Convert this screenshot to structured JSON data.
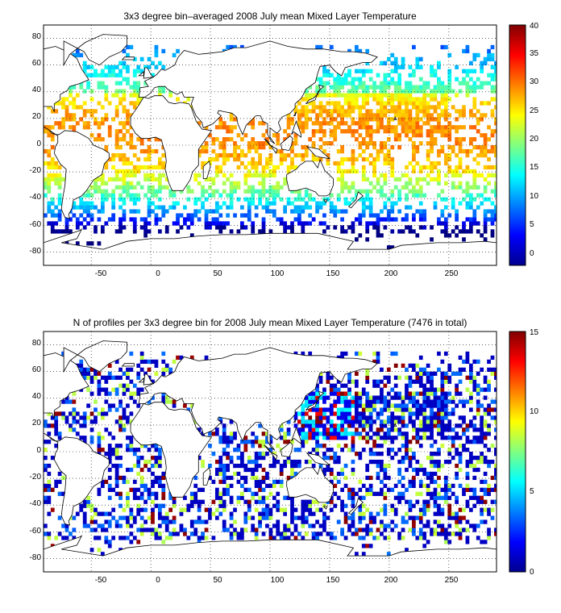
{
  "figure": {
    "panels": [
      {
        "title": "3x3 degree bin–averaged 2008 July mean Mixed Layer Temperature",
        "x_ticks": [
          "-50",
          "0",
          "50",
          "100",
          "150",
          "200",
          "250"
        ],
        "y_ticks": [
          "80",
          "60",
          "40",
          "20",
          "0",
          "-20",
          "-40",
          "-60",
          "-80"
        ],
        "colorbar_ticks": [
          "40",
          "35",
          "30",
          "25",
          "20",
          "15",
          "10",
          "5",
          "0"
        ]
      },
      {
        "title": "N of profiles per 3x3 degree bin for 2008 July mean Mixed Layer Temperature  (7476 in total)",
        "x_ticks": [
          "-50",
          "0",
          "50",
          "100",
          "150",
          "200",
          "250"
        ],
        "y_ticks": [
          "80",
          "60",
          "40",
          "20",
          "0",
          "-20",
          "-40",
          "-60",
          "-80"
        ],
        "colorbar_ticks": [
          "15",
          "10",
          "5",
          "0"
        ]
      }
    ]
  },
  "chart_data": [
    {
      "type": "heatmap",
      "title": "3x3 degree bin–averaged 2008 July mean Mixed Layer Temperature",
      "xlim": [
        -90,
        290
      ],
      "ylim": [
        -90,
        90
      ],
      "bin_size_deg": 3,
      "grid": true,
      "colorbar": {
        "range": [
          -2,
          40
        ],
        "colormap": "jet",
        "placement": "right"
      }
    },
    {
      "type": "heatmap",
      "title": "N of profiles per 3x3 degree bin for 2008 July mean Mixed Layer Temperature  (7476 in total)",
      "xlim": [
        -90,
        290
      ],
      "ylim": [
        -90,
        90
      ],
      "bin_size_deg": 3,
      "grid": true,
      "total_profiles": 7476,
      "colorbar": {
        "range": [
          0,
          15
        ],
        "colormap": "jet",
        "placement": "right"
      }
    }
  ]
}
